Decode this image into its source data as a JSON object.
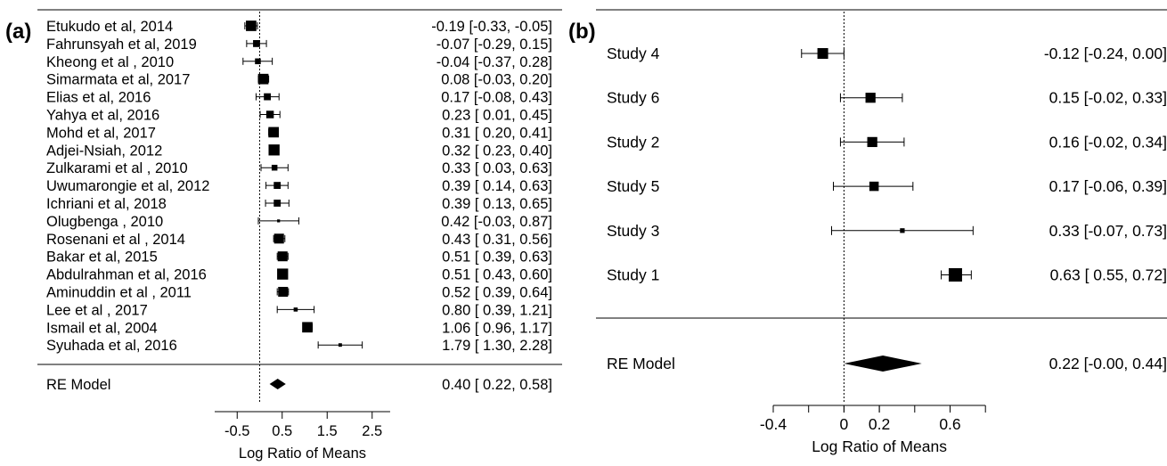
{
  "chart_data": [
    {
      "type": "forest",
      "panel_label": "(a)",
      "xlabel": "Log Ratio of Means",
      "xlim": [
        -1.0,
        3.0
      ],
      "xticks": [
        -0.5,
        0.5,
        1.5,
        2.5
      ],
      "xtick_labels": [
        "-0.5",
        "0.5",
        "1.5",
        "2.5"
      ],
      "reference_line": 0,
      "studies": [
        {
          "label": "Etukudo et al, 2014",
          "estimate": -0.19,
          "lower": -0.33,
          "upper": -0.05,
          "ci_text": "-0.19 [-0.33, -0.05]",
          "weight": 0.9
        },
        {
          "label": "Fahrunsyah et al, 2019",
          "estimate": -0.07,
          "lower": -0.29,
          "upper": 0.15,
          "ci_text": "-0.07 [-0.29,  0.15]",
          "weight": 0.6
        },
        {
          "label": "Kheong et al , 2010",
          "estimate": -0.04,
          "lower": -0.37,
          "upper": 0.28,
          "ci_text": "-0.04 [-0.37,  0.28]",
          "weight": 0.5
        },
        {
          "label": "Simarmata et al, 2017",
          "estimate": 0.08,
          "lower": -0.03,
          "upper": 0.2,
          "ci_text": "0.08 [-0.03,  0.20]",
          "weight": 0.9
        },
        {
          "label": "Elias et al, 2016",
          "estimate": 0.17,
          "lower": -0.08,
          "upper": 0.43,
          "ci_text": "0.17 [-0.08,  0.43]",
          "weight": 0.6
        },
        {
          "label": "Yahya et al, 2016",
          "estimate": 0.23,
          "lower": 0.01,
          "upper": 0.45,
          "ci_text": "0.23 [ 0.01,  0.45]",
          "weight": 0.65
        },
        {
          "label": "Mohd et al, 2017",
          "estimate": 0.31,
          "lower": 0.2,
          "upper": 0.41,
          "ci_text": "0.31 [ 0.20,  0.41]",
          "weight": 0.9
        },
        {
          "label": "Adjei-Nsiah, 2012",
          "estimate": 0.32,
          "lower": 0.23,
          "upper": 0.4,
          "ci_text": "0.32 [ 0.23,  0.40]",
          "weight": 0.95
        },
        {
          "label": "Zulkarami et al , 2010",
          "estimate": 0.33,
          "lower": 0.03,
          "upper": 0.63,
          "ci_text": "0.33 [ 0.03,  0.63]",
          "weight": 0.5
        },
        {
          "label": "Uwumarongie et al, 2012",
          "estimate": 0.39,
          "lower": 0.14,
          "upper": 0.63,
          "ci_text": "0.39 [ 0.14,  0.63]",
          "weight": 0.6
        },
        {
          "label": "Ichriani et al, 2018",
          "estimate": 0.39,
          "lower": 0.13,
          "upper": 0.65,
          "ci_text": "0.39 [ 0.13,  0.65]",
          "weight": 0.6
        },
        {
          "label": "Olugbenga , 2010",
          "estimate": 0.42,
          "lower": -0.03,
          "upper": 0.87,
          "ci_text": "0.42 [-0.03,  0.87]",
          "weight": 0.25
        },
        {
          "label": "Rosenani et al , 2014",
          "estimate": 0.43,
          "lower": 0.31,
          "upper": 0.56,
          "ci_text": "0.43 [ 0.31,  0.56]",
          "weight": 0.85
        },
        {
          "label": "Bakar et al, 2015",
          "estimate": 0.51,
          "lower": 0.39,
          "upper": 0.63,
          "ci_text": "0.51 [ 0.39,  0.63]",
          "weight": 0.85
        },
        {
          "label": "Abdulrahman et al, 2016",
          "estimate": 0.51,
          "lower": 0.43,
          "upper": 0.6,
          "ci_text": "0.51 [ 0.43,  0.60]",
          "weight": 0.95
        },
        {
          "label": "Aminuddin et al , 2011",
          "estimate": 0.52,
          "lower": 0.39,
          "upper": 0.64,
          "ci_text": "0.52 [ 0.39,  0.64]",
          "weight": 0.85
        },
        {
          "label": "Lee et al , 2017",
          "estimate": 0.8,
          "lower": 0.39,
          "upper": 1.21,
          "ci_text": "0.80 [ 0.39,  1.21]",
          "weight": 0.35
        },
        {
          "label": "Ismail et al, 2004",
          "estimate": 1.06,
          "lower": 0.96,
          "upper": 1.17,
          "ci_text": "1.06 [ 0.96,  1.17]",
          "weight": 0.9
        },
        {
          "label": "Syuhada et al, 2016",
          "estimate": 1.79,
          "lower": 1.3,
          "upper": 2.28,
          "ci_text": "1.79 [ 1.30,  2.28]",
          "weight": 0.3
        }
      ],
      "summary": {
        "label": "RE Model",
        "estimate": 0.4,
        "lower": 0.22,
        "upper": 0.58,
        "ci_text": "0.40 [ 0.22,  0.58]"
      }
    },
    {
      "type": "forest",
      "panel_label": "(b)",
      "xlabel": "Log Ratio of Means",
      "xlim": [
        -0.4,
        0.8
      ],
      "xticks": [
        -0.4,
        0,
        0.2,
        0.6
      ],
      "xtick_labels": [
        "-0.4",
        "0",
        "0.2",
        "0.6"
      ],
      "minor_xticks": [
        -0.4,
        -0.2,
        0,
        0.2,
        0.4,
        0.6,
        0.8
      ],
      "reference_line": 0,
      "studies": [
        {
          "label": "Study 4",
          "estimate": -0.12,
          "lower": -0.24,
          "upper": 0.0,
          "ci_text": "-0.12 [-0.24, 0.00]",
          "weight": 0.8
        },
        {
          "label": "Study 6",
          "estimate": 0.15,
          "lower": -0.02,
          "upper": 0.33,
          "ci_text": "0.15 [-0.02, 0.33]",
          "weight": 0.75
        },
        {
          "label": "Study 2",
          "estimate": 0.16,
          "lower": -0.02,
          "upper": 0.34,
          "ci_text": "0.16 [-0.02, 0.34]",
          "weight": 0.75
        },
        {
          "label": "Study 5",
          "estimate": 0.17,
          "lower": -0.06,
          "upper": 0.39,
          "ci_text": "0.17 [-0.06, 0.39]",
          "weight": 0.7
        },
        {
          "label": "Study 3",
          "estimate": 0.33,
          "lower": -0.07,
          "upper": 0.73,
          "ci_text": "0.33 [-0.07, 0.73]",
          "weight": 0.35
        },
        {
          "label": "Study 1",
          "estimate": 0.63,
          "lower": 0.55,
          "upper": 0.72,
          "ci_text": "0.63 [ 0.55, 0.72]",
          "weight": 1.0
        }
      ],
      "summary": {
        "label": "RE Model",
        "estimate": 0.22,
        "lower": -0.0,
        "upper": 0.44,
        "ci_text": "0.22 [-0.00, 0.44]"
      }
    }
  ]
}
